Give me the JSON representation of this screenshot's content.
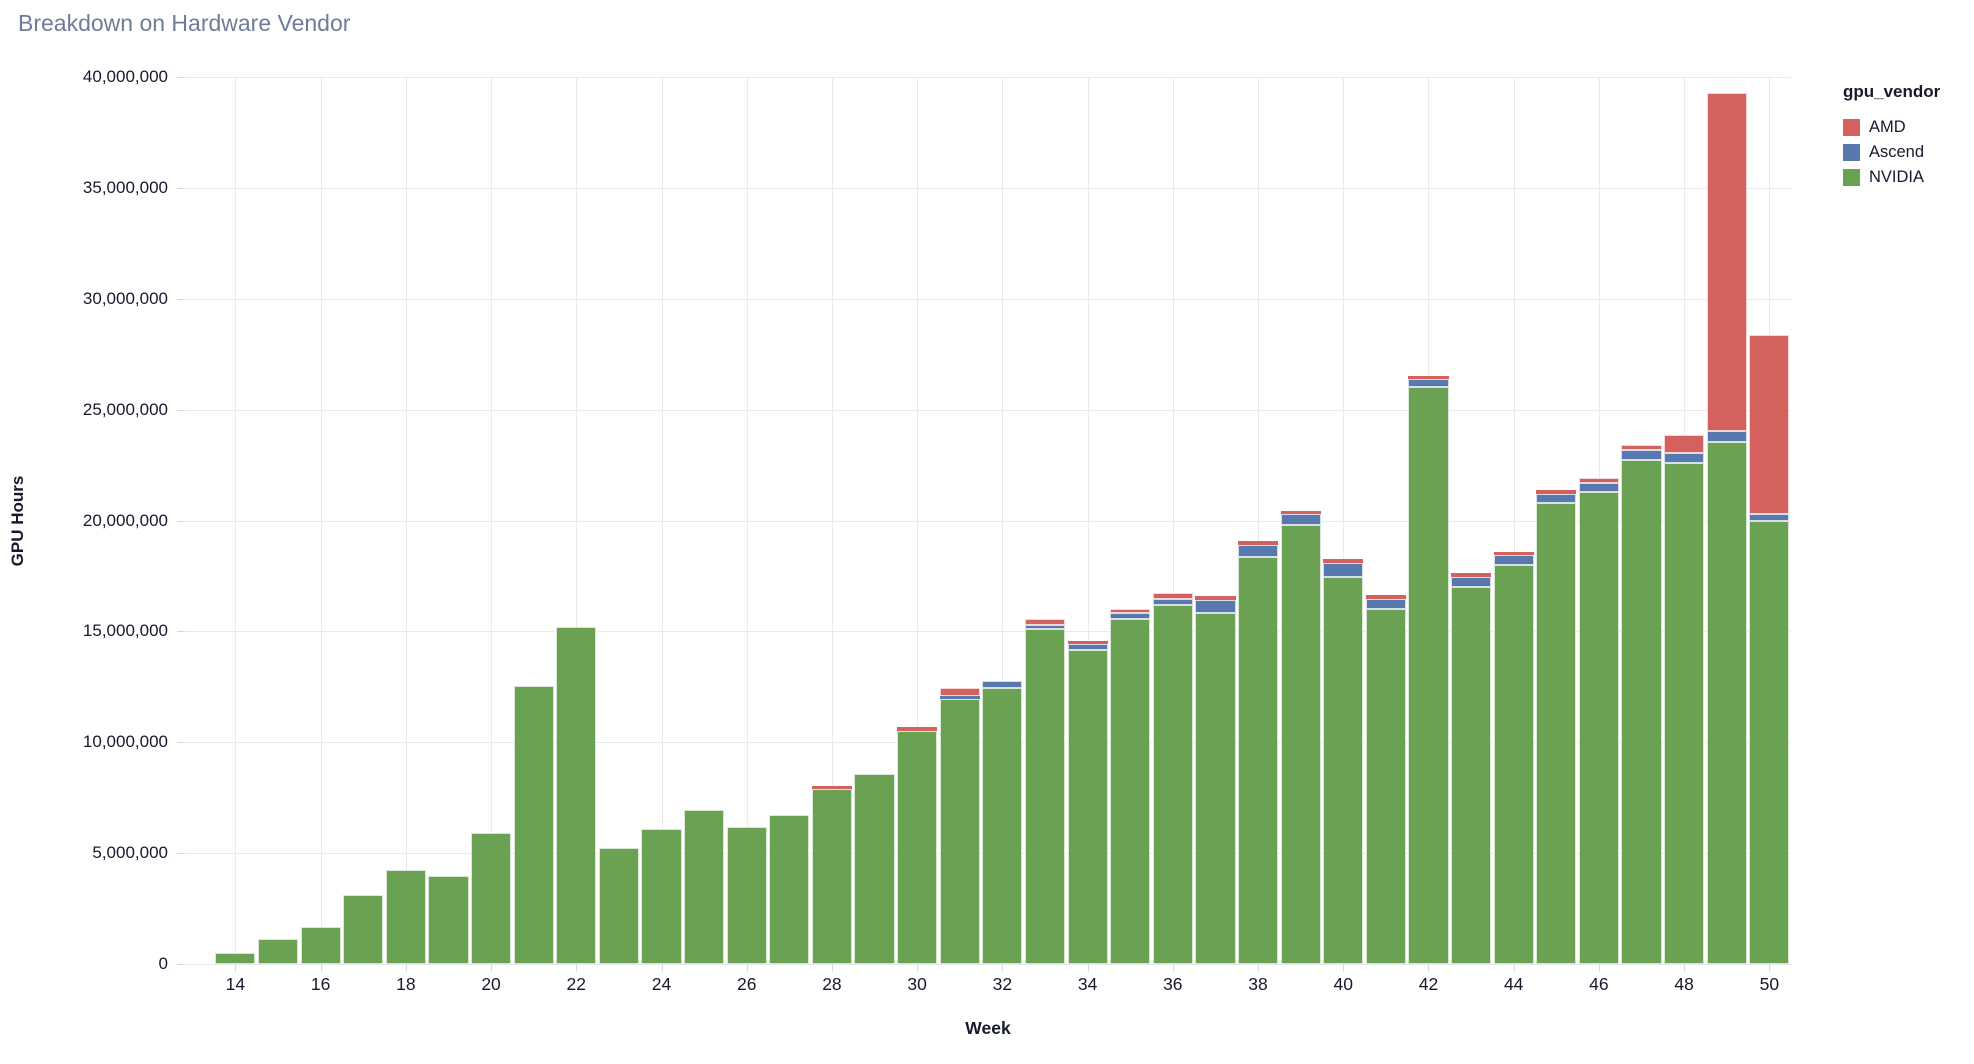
{
  "title": "Breakdown on Hardware Vendor",
  "axes": {
    "y_title": "GPU Hours",
    "x_title": "Week"
  },
  "legend": {
    "title": "gpu_vendor",
    "items": [
      {
        "label": "AMD",
        "color": "#d5615e"
      },
      {
        "label": "Ascend",
        "color": "#5779ad"
      },
      {
        "label": "NVIDIA",
        "color": "#6aa153"
      }
    ]
  },
  "chart_data": {
    "type": "bar",
    "stacked": true,
    "title": "Breakdown on Hardware Vendor",
    "xlabel": "Week",
    "ylabel": "GPU Hours",
    "grid": true,
    "legend_position": "top-right",
    "legend_title": "gpu_vendor",
    "x": [
      14,
      15,
      16,
      17,
      18,
      19,
      20,
      21,
      22,
      23,
      24,
      25,
      26,
      27,
      28,
      29,
      30,
      31,
      32,
      33,
      34,
      35,
      36,
      37,
      38,
      39,
      40,
      41,
      42,
      43,
      44,
      45,
      46,
      47,
      48,
      49,
      50
    ],
    "x_labeled_ticks": [
      14,
      16,
      18,
      20,
      22,
      24,
      26,
      28,
      30,
      32,
      34,
      36,
      38,
      40,
      42,
      44,
      46,
      48,
      50
    ],
    "ylim": [
      0,
      40000000
    ],
    "y_ticks": [
      0,
      5000000,
      10000000,
      15000000,
      20000000,
      25000000,
      30000000,
      35000000,
      40000000
    ],
    "stack_order_bottom_to_top": [
      "NVIDIA",
      "Ascend",
      "AMD"
    ],
    "series": [
      {
        "name": "AMD",
        "color": "#d5615e",
        "values": [
          0,
          0,
          0,
          0,
          0,
          0,
          0,
          0,
          0,
          0,
          0,
          0,
          0,
          0,
          150000,
          0,
          180000,
          350000,
          0,
          260000,
          150000,
          190000,
          260000,
          180000,
          180000,
          140000,
          180000,
          170000,
          120000,
          160000,
          120000,
          170000,
          200000,
          220000,
          790000,
          15240000,
          8070000
        ]
      },
      {
        "name": "Ascend",
        "color": "#5779ad",
        "values": [
          0,
          0,
          0,
          0,
          0,
          0,
          0,
          0,
          0,
          0,
          0,
          0,
          0,
          0,
          0,
          0,
          0,
          150000,
          320000,
          200000,
          270000,
          300000,
          260000,
          570000,
          530000,
          490000,
          610000,
          450000,
          390000,
          450000,
          460000,
          390000,
          400000,
          450000,
          480000,
          480000,
          300000
        ]
      },
      {
        "name": "NVIDIA",
        "color": "#6aa153",
        "values": [
          500000,
          1130000,
          1680000,
          3130000,
          4260000,
          3990000,
          5920000,
          12540000,
          15180000,
          5240000,
          6100000,
          6930000,
          6190000,
          6700000,
          7880000,
          8550000,
          10510000,
          11930000,
          12460000,
          15090000,
          14160000,
          15540000,
          16190000,
          15840000,
          18360000,
          19800000,
          17460000,
          16000000,
          26000000,
          17010000,
          17980000,
          20800000,
          21300000,
          22730000,
          22580000,
          23540000,
          19990000
        ]
      }
    ]
  },
  "style": {
    "gridline_color": "#e9e9f2",
    "tick_color": "#d6d8e4",
    "text_color": "#171a2b",
    "title_color": "#6e7c97",
    "background": "#ffffff"
  }
}
